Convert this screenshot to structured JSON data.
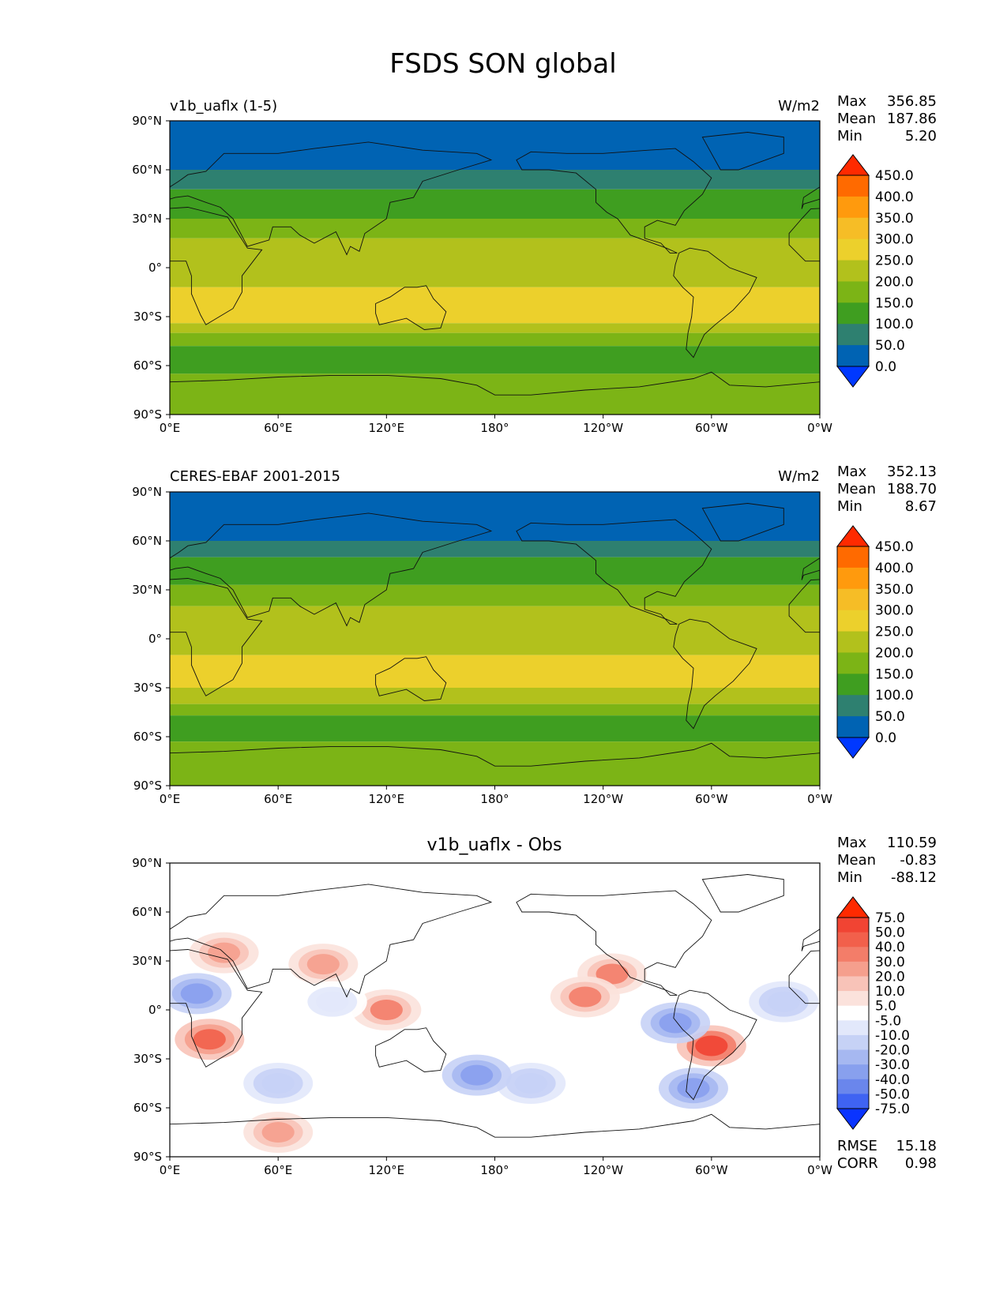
{
  "figure_title": "FSDS SON global",
  "chart_data": [
    {
      "type": "heatmap",
      "title": "v1b_uaflx (1-5)",
      "units": "W/m2",
      "stats": {
        "max_label": "Max",
        "max": "356.85",
        "mean_label": "Mean",
        "mean": "187.86",
        "min_label": "Min",
        "min": "5.20"
      },
      "xticks": [
        "0°E",
        "60°E",
        "120°E",
        "180°",
        "120°W",
        "60°W",
        "0°W"
      ],
      "yticks": [
        "90°N",
        "60°N",
        "30°N",
        "0°",
        "30°S",
        "60°S",
        "90°S"
      ],
      "colorbar": {
        "levels": [
          "450.0",
          "400.0",
          "350.0",
          "300.0",
          "250.0",
          "200.0",
          "150.0",
          "100.0",
          "50.0",
          "0.0"
        ],
        "colors": [
          "#ff2a00",
          "#ff6a00",
          "#ff9a0d",
          "#f6bd26",
          "#ecd02c",
          "#b2c11c",
          "#7cb416",
          "#3f9e20",
          "#2e8070",
          "#0063b3",
          "#0038ff"
        ]
      },
      "zonal_bands": [
        {
          "lat": [
            60,
            90
          ],
          "value": "0-50"
        },
        {
          "lat": [
            48,
            60
          ],
          "value": "50-100"
        },
        {
          "lat": [
            30,
            48
          ],
          "value": "100-150"
        },
        {
          "lat": [
            18,
            30
          ],
          "value": "150-200"
        },
        {
          "lat": [
            -12,
            18
          ],
          "value": "200-250"
        },
        {
          "lat": [
            -34,
            -12
          ],
          "value": "250-300"
        },
        {
          "lat": [
            -40,
            -34
          ],
          "value": "200-250"
        },
        {
          "lat": [
            -48,
            -40
          ],
          "value": "150-200"
        },
        {
          "lat": [
            -65,
            -48
          ],
          "value": "100-150"
        },
        {
          "lat": [
            -90,
            -65
          ],
          "value": "150-200"
        }
      ]
    },
    {
      "type": "heatmap",
      "title": "CERES-EBAF 2001-2015",
      "units": "W/m2",
      "stats": {
        "max_label": "Max",
        "max": "352.13",
        "mean_label": "Mean",
        "mean": "188.70",
        "min_label": "Min",
        "min": "8.67"
      },
      "xticks": [
        "0°E",
        "60°E",
        "120°E",
        "180°",
        "120°W",
        "60°W",
        "0°W"
      ],
      "yticks": [
        "90°N",
        "60°N",
        "30°N",
        "0°",
        "30°S",
        "60°S",
        "90°S"
      ],
      "colorbar": {
        "levels": [
          "450.0",
          "400.0",
          "350.0",
          "300.0",
          "250.0",
          "200.0",
          "150.0",
          "100.0",
          "50.0",
          "0.0"
        ],
        "colors": [
          "#ff2a00",
          "#ff6a00",
          "#ff9a0d",
          "#f6bd26",
          "#ecd02c",
          "#b2c11c",
          "#7cb416",
          "#3f9e20",
          "#2e8070",
          "#0063b3",
          "#0038ff"
        ]
      },
      "zonal_bands": [
        {
          "lat": [
            60,
            90
          ],
          "value": "0-50"
        },
        {
          "lat": [
            50,
            60
          ],
          "value": "50-100"
        },
        {
          "lat": [
            33,
            50
          ],
          "value": "100-150"
        },
        {
          "lat": [
            20,
            33
          ],
          "value": "150-200"
        },
        {
          "lat": [
            -10,
            20
          ],
          "value": "200-250"
        },
        {
          "lat": [
            -30,
            -10
          ],
          "value": "250-300"
        },
        {
          "lat": [
            -40,
            -30
          ],
          "value": "200-250"
        },
        {
          "lat": [
            -47,
            -40
          ],
          "value": "150-200"
        },
        {
          "lat": [
            -63,
            -47
          ],
          "value": "100-150"
        },
        {
          "lat": [
            -90,
            -63
          ],
          "value": "150-200"
        }
      ]
    },
    {
      "type": "heatmap",
      "title": "v1b_uaflx - Obs",
      "stats": {
        "max_label": "Max",
        "max": "110.59",
        "mean_label": "Mean",
        "mean": "-0.83",
        "min_label": "Min",
        "min": "-88.12"
      },
      "error_stats": {
        "rmse_label": "RMSE",
        "rmse": "15.18",
        "corr_label": "CORR",
        "corr": "0.98"
      },
      "xticks": [
        "0°E",
        "60°E",
        "120°E",
        "180°",
        "120°W",
        "60°W",
        "0°W"
      ],
      "yticks": [
        "90°N",
        "60°N",
        "30°N",
        "0°",
        "30°S",
        "60°S",
        "90°S"
      ],
      "colorbar": {
        "levels": [
          "75.0",
          "50.0",
          "40.0",
          "30.0",
          "20.0",
          "10.0",
          "5.0",
          "-5.0",
          "-10.0",
          "-20.0",
          "-30.0",
          "-40.0",
          "-50.0",
          "-75.0"
        ],
        "colors": [
          "#ff2a00",
          "#f14433",
          "#f2604b",
          "#f37d69",
          "#f59f8d",
          "#f8c3b8",
          "#fbe2dc",
          "#ffffff",
          "#e2e8fb",
          "#c6d2f6",
          "#a6b8f1",
          "#88a0ee",
          "#6a86ec",
          "#3f63f2",
          "#0a34ff"
        ]
      },
      "anomalies": [
        {
          "lon": 22,
          "lat": -18,
          "value": 40
        },
        {
          "lon": -60,
          "lat": -22,
          "value": 50
        },
        {
          "lon": -115,
          "lat": 22,
          "value": 30
        },
        {
          "lon": -130,
          "lat": 8,
          "value": 30
        },
        {
          "lon": 120,
          "lat": 0,
          "value": 30
        },
        {
          "lon": 85,
          "lat": 28,
          "value": 20
        },
        {
          "lon": 30,
          "lat": 35,
          "value": 20
        },
        {
          "lon": 60,
          "lat": -75,
          "value": 20
        },
        {
          "lon": -80,
          "lat": -8,
          "value": -40
        },
        {
          "lon": 15,
          "lat": 10,
          "value": -40
        },
        {
          "lon": -70,
          "lat": -48,
          "value": -40
        },
        {
          "lon": 60,
          "lat": -45,
          "value": -20
        },
        {
          "lon": -160,
          "lat": -45,
          "value": -20
        },
        {
          "lon": 170,
          "lat": -40,
          "value": -40
        },
        {
          "lon": 90,
          "lat": 5,
          "value": -10
        },
        {
          "lon": -20,
          "lat": 5,
          "value": -20
        }
      ]
    }
  ]
}
